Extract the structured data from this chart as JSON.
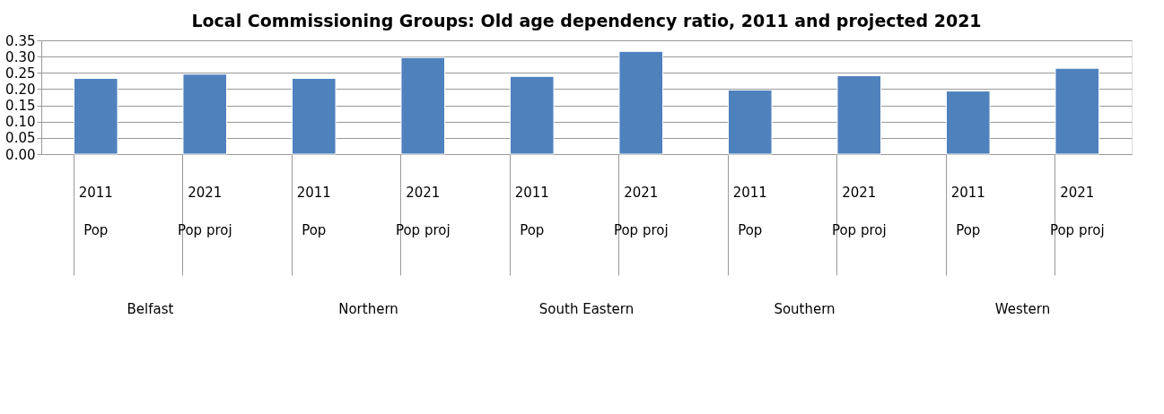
{
  "chart_data": {
    "type": "bar",
    "title": "Local Commissioning  Groups: Old age dependency ratio, 2011 and projected 2021",
    "categories": [
      "2011\nPop",
      "2021\nPop proj",
      "2011\nPop",
      "2021\nPop proj",
      "2011\nPop",
      "2021\nPop proj",
      "2011\nPop",
      "2021\nPop proj",
      "2011\nPop",
      "2021\nPop proj"
    ],
    "values": [
      0.233,
      0.246,
      0.233,
      0.297,
      0.239,
      0.316,
      0.197,
      0.241,
      0.194,
      0.264
    ],
    "color": "#4f81bd",
    "ylim": [
      0,
      0.35
    ],
    "yticks": [
      {
        "value": 0,
        "label": "0.00"
      },
      {
        "value": 0.05,
        "label": "0.05"
      },
      {
        "value": 0.1,
        "label": "0.10"
      },
      {
        "value": 0.15,
        "label": "0.15"
      },
      {
        "value": 0.2,
        "label": "0.20"
      },
      {
        "value": 0.25,
        "label": "0.25"
      },
      {
        "value": 0.3,
        "label": "0.30"
      },
      {
        "value": 0.35,
        "label": "0.35"
      }
    ],
    "grid": "y",
    "annotations": [
      "Belfast",
      "Northern",
      "South Eastern",
      "Southern",
      "Western"
    ]
  }
}
